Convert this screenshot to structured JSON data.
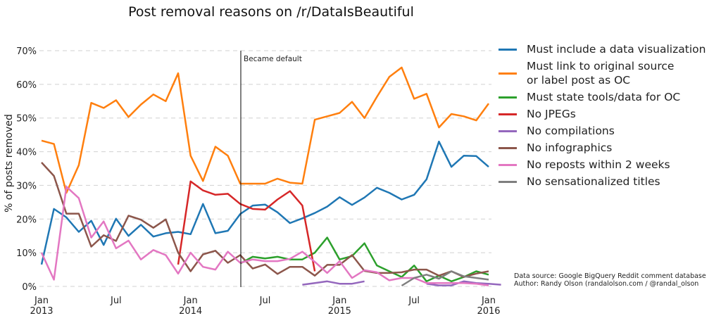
{
  "title": "Post removal reasons on /r/DataIsBeautiful",
  "ylabel": "% of posts removed",
  "annotation": "Became default",
  "credits": {
    "line1": "Data source: Google BigQuery Reddit comment database",
    "line2": "Author: Randy Olson (randalolson.com / @randal_olson"
  },
  "legend": [
    {
      "label": "Must include a data visualization",
      "color": "#1f77b4"
    },
    {
      "label": "Must link to original source\nor label post as OC",
      "color": "#ff7f0e"
    },
    {
      "label": "Must state tools/data for OC",
      "color": "#2ca02c"
    },
    {
      "label": "No JPEGs",
      "color": "#d62728"
    },
    {
      "label": "No compilations",
      "color": "#9467bd"
    },
    {
      "label": "No infographics",
      "color": "#8c564b"
    },
    {
      "label": "No reposts within 2 weeks",
      "color": "#e377c2"
    },
    {
      "label": "No sensationalized titles",
      "color": "#7f7f7f"
    }
  ],
  "chart_data": {
    "type": "line",
    "title": "Post removal reasons on /r/DataIsBeautiful",
    "xlabel": "",
    "ylabel": "% of posts removed",
    "x_description": "Monthly, index 0 = Jan 2013 ... 36 = Jan 2016",
    "x_ticks": [
      {
        "month": 0,
        "label": "Jan\n2013"
      },
      {
        "month": 6,
        "label": "Jul"
      },
      {
        "month": 12,
        "label": "Jan\n2014"
      },
      {
        "month": 18,
        "label": "Jul"
      },
      {
        "month": 24,
        "label": "Jan\n2015"
      },
      {
        "month": 30,
        "label": "Jul"
      },
      {
        "month": 36,
        "label": "Jan\n2016"
      }
    ],
    "y_ticks": [
      "0%",
      "10%",
      "20%",
      "30%",
      "40%",
      "50%",
      "60%",
      "70%"
    ],
    "ylim": [
      0,
      70
    ],
    "grid": "horizontal dashed",
    "legend_position": "right",
    "annotations": [
      {
        "month": 16.1,
        "text": "Became default",
        "type": "vertical line"
      }
    ],
    "series": [
      {
        "name": "Must include a data visualization",
        "color": "#1f77b4",
        "start": 0,
        "values": [
          6.5,
          23,
          20.5,
          16.2,
          19.5,
          12.3,
          20.1,
          15,
          18.3,
          14.8,
          15.8,
          16.2,
          15.5,
          24.5,
          15.8,
          16.5,
          21.5,
          24,
          24.3,
          22,
          18.8,
          20.2,
          21.8,
          23.7,
          26.5,
          24.2,
          26.4,
          29.3,
          27.8,
          25.8,
          27.2,
          31.8,
          43,
          35.5,
          38.8,
          38.7,
          35.5
        ]
      },
      {
        "name": "Must link to original source or label post as OC",
        "color": "#ff7f0e",
        "start": 0,
        "values": [
          43.3,
          42.3,
          27.8,
          36,
          54.5,
          53,
          55.3,
          50.3,
          54,
          57,
          55,
          63.3,
          38.8,
          31.3,
          41.5,
          38.8,
          30.5,
          30.5,
          30.5,
          32,
          30.8,
          30.5,
          49.5,
          50.5,
          51.5,
          54.8,
          50,
          56.3,
          62.2,
          65,
          55.7,
          57.2,
          47.2,
          51.2,
          50.5,
          49.3,
          54.3
        ]
      },
      {
        "name": "Must state tools/data for OC",
        "color": "#2ca02c",
        "start": 16,
        "values": [
          6.8,
          8.8,
          8.3,
          8.8,
          8,
          8,
          10,
          14.5,
          8,
          9,
          12.8,
          6.2,
          4.5,
          2.8,
          6.2,
          1.5,
          3.2,
          1.5,
          2.8,
          4.5,
          3.5
        ]
      },
      {
        "name": "No JPEGs",
        "color": "#d62728",
        "start": 11,
        "values": [
          6.5,
          31.2,
          28.5,
          27.2,
          27.5,
          24.5,
          23,
          22.8,
          25.8,
          28.3,
          24,
          4.5
        ]
      },
      {
        "name": "No compilations",
        "color": "#9467bd",
        "start": 21,
        "values": [
          0.5,
          1,
          1.5,
          0.8,
          0.8,
          1.5,
          null,
          null,
          null,
          null,
          0.8,
          0.3,
          0.3,
          1.5,
          1,
          0.8,
          0.5
        ]
      },
      {
        "name": "No infographics",
        "color": "#8c564b",
        "start": 0,
        "values": [
          36.8,
          32.8,
          21.6,
          21.6,
          11.8,
          15.2,
          13.5,
          21,
          19.8,
          17.4,
          19.9,
          10,
          4.5,
          9.5,
          10.6,
          7,
          9.3,
          5.3,
          6.5,
          3.7,
          5.8,
          5.8,
          3.2,
          6.4,
          6.4,
          9.3,
          4.6,
          4,
          4,
          4.2,
          5,
          5,
          3.2,
          4.5,
          2.8,
          3.8,
          4.5
        ]
      },
      {
        "name": "No reposts within 2 weeks",
        "color": "#e377c2",
        "start": 0,
        "values": [
          10,
          2,
          29.6,
          26.2,
          14.5,
          19.3,
          11.3,
          13.6,
          8,
          10.8,
          9.3,
          3.8,
          10,
          5.8,
          5,
          10.3,
          7,
          8,
          7.5,
          7.5,
          8.2,
          10.3,
          7.3,
          4,
          7.5,
          2.5,
          4.8,
          4.2,
          1.8,
          2.5,
          2.5,
          1,
          1,
          1,
          1,
          0.8,
          0.3
        ]
      },
      {
        "name": "No sensationalized titles",
        "color": "#7f7f7f",
        "start": 29,
        "values": [
          0.2,
          2.5,
          3.5,
          2.3,
          4.5,
          3,
          2.5,
          2
        ]
      }
    ]
  }
}
